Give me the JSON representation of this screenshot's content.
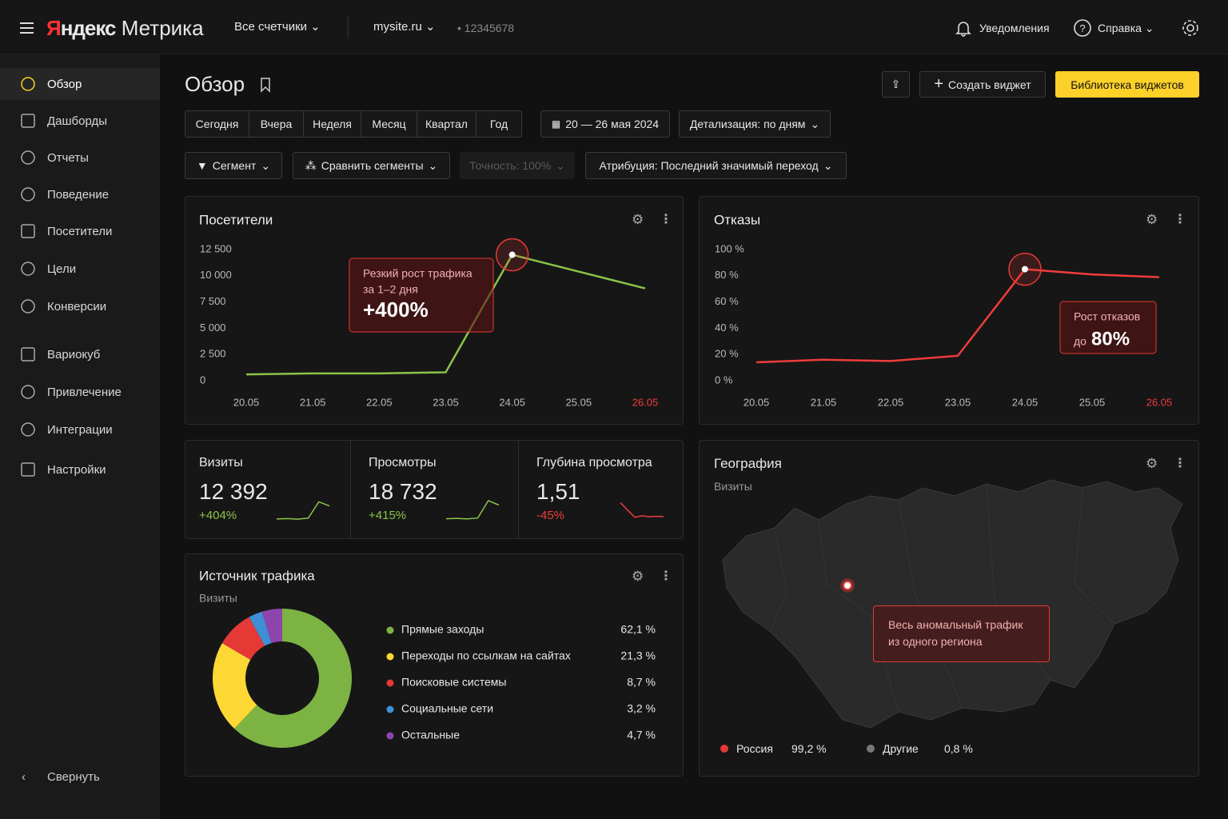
{
  "header": {
    "brand": "Яндекс",
    "product": "Метрика",
    "counters": "Все счетчики",
    "site": "mysite.ru",
    "counter_id": "12345678",
    "notifications": "Уведомления",
    "help": "Справка"
  },
  "sidebar": {
    "items": [
      "Обзор",
      "Дашборды",
      "Отчеты",
      "Поведение",
      "Посетители",
      "Цели",
      "Конверсии",
      "Вариокуб",
      "Привлечение",
      "Интеграции",
      "Настройки"
    ],
    "collapse": "Свернуть"
  },
  "page": {
    "title": "Обзор",
    "create_widget": "Создать виджет",
    "widget_library": "Библиотека виджетов",
    "periods": [
      "Сегодня",
      "Вчера",
      "Неделя",
      "Месяц",
      "Квартал",
      "Год"
    ],
    "date_range": "20 — 26 мая 2024",
    "detail": "Детализация: по дням",
    "segment": "Сегмент",
    "compare": "Сравнить сегменты",
    "accuracy": "Точность: 100%",
    "attribution": "Атрибуция: Последний значимый переход"
  },
  "kpis": [
    {
      "name": "Визиты",
      "value": "12 392",
      "change": "+404%"
    },
    {
      "name": "Просмотры",
      "value": "18 732",
      "change": "+415%"
    },
    {
      "name": "Глубина просмотра",
      "value": "1,51",
      "change": "-45%"
    }
  ],
  "geography": {
    "title": "География",
    "subtitle": "Визиты",
    "annotation": [
      "Весь аномальный трафик",
      "из одного региона"
    ],
    "legend": [
      {
        "name": "Россия",
        "value": "99,2 %",
        "color": "#e53935"
      },
      {
        "name": "Другие",
        "value": "0,8 %",
        "color": "#777777"
      }
    ]
  },
  "chart_data": [
    {
      "type": "line",
      "title": "Посетители",
      "categories": [
        "20.05",
        "21.05",
        "22.05",
        "23.05",
        "24.05",
        "25.05",
        "26.05"
      ],
      "values": [
        600,
        700,
        700,
        800,
        12000,
        10400,
        8800
      ],
      "color": "#8bc34a",
      "ylim": [
        0,
        12500
      ],
      "yticks": [
        0,
        {
          "value": 2500,
          "label": "2 500"
        },
        {
          "value": 5000,
          "label": "5 000"
        },
        {
          "value": 7500,
          "label": "7 500"
        },
        {
          "value": 10000,
          "label": "10 000"
        },
        {
          "value": 12500,
          "label": "12 500"
        }
      ],
      "grid": false,
      "annotation": {
        "lines": [
          "Резкий рост трафика",
          "за 1–2 дня"
        ],
        "value": "+400%"
      }
    },
    {
      "type": "line",
      "title": "Отказы",
      "categories": [
        "20.05",
        "21.05",
        "22.05",
        "23.05",
        "24.05",
        "25.05",
        "26.05"
      ],
      "values": [
        14,
        16,
        15,
        19,
        85,
        81,
        79
      ],
      "color": "#f03c3c",
      "ylim": [
        0,
        100
      ],
      "yticks": [
        {
          "value": 0,
          "label": "0 %"
        },
        {
          "value": 20,
          "label": "20 %"
        },
        {
          "value": 40,
          "label": "40 %"
        },
        {
          "value": 60,
          "label": "60 %"
        },
        {
          "value": 80,
          "label": "80 %"
        },
        {
          "value": 100,
          "label": "100 %"
        }
      ],
      "grid": false,
      "annotation": {
        "lines": [
          "Рост отказов"
        ],
        "prefix": "до",
        "value": "80%"
      }
    },
    {
      "type": "line",
      "values": [
        2400,
        2600,
        2300,
        2900,
        12392,
        10000
      ],
      "color": "#8bc34a",
      "ylim": [
        0,
        14000
      ]
    },
    {
      "type": "line",
      "values": [
        3600,
        3900,
        3500,
        4200,
        18732,
        15000
      ],
      "color": "#8bc34a",
      "ylim": [
        0,
        20000
      ]
    },
    {
      "type": "line",
      "values": [
        3,
        2.2,
        1.45,
        1.6,
        1.5,
        1.55,
        1.51
      ],
      "color": "#f03c3c",
      "ylim": [
        1,
        3.2
      ]
    },
    {
      "type": "pie",
      "title": "Источник трафика",
      "subtitle": "Визиты",
      "categories": [
        "Прямые заходы",
        "Переходы по ссылкам на сайтах",
        "Поисковые системы",
        "Социальные сети",
        "Остальные"
      ],
      "values": [
        62.1,
        21.3,
        8.7,
        3.2,
        4.7
      ],
      "value_labels": [
        "62,1 %",
        "21,3 %",
        "8,7 %",
        "3,2 %",
        "4,7 %"
      ],
      "colors": [
        "#7cb342",
        "#fdd835",
        "#e53935",
        "#3f8fd6",
        "#8e44ad"
      ]
    }
  ]
}
